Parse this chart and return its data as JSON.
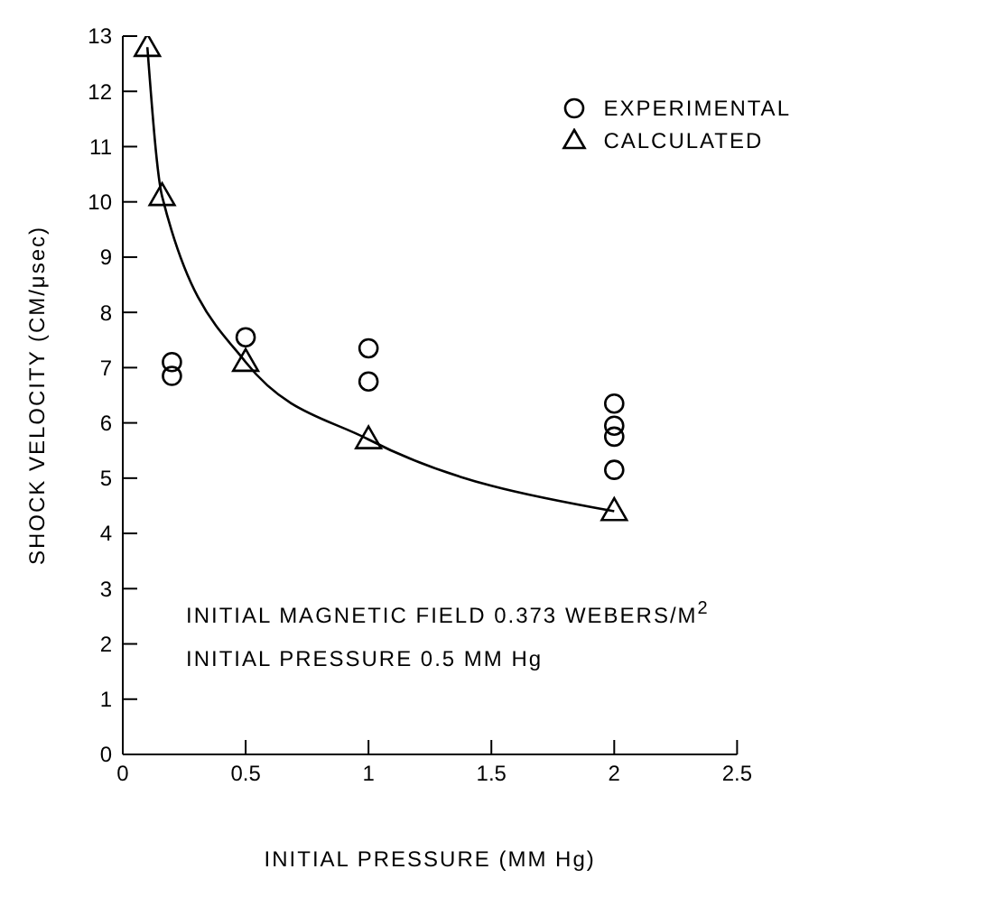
{
  "chart_data": {
    "type": "scatter",
    "xlabel": "INITIAL PRESSURE (MM Hg)",
    "ylabel": "SHOCK VELOCITY (CM/μsec)",
    "xlim": [
      0,
      2.5
    ],
    "xticks": [
      0,
      0.5,
      1,
      1.5,
      2,
      2.5
    ],
    "ylim": [
      0,
      13
    ],
    "yticks": [
      0,
      1,
      2,
      3,
      4,
      5,
      6,
      7,
      8,
      9,
      10,
      11,
      12,
      13
    ],
    "grid": false,
    "legend": "top right",
    "annotations": [
      "INITIAL MAGNETIC FIELD 0.373 WEBERS/M$^{2}$",
      "INITIAL PRESSURE 0.5 MM Hg"
    ],
    "series": [
      {
        "name": "EXPERIMENTAL",
        "marker": "circle",
        "color": "#000000",
        "x": [
          0.2,
          0.2,
          0.5,
          1,
          1,
          2,
          2,
          2,
          2
        ],
        "values": [
          7.1,
          6.85,
          7.55,
          7.35,
          6.75,
          6.35,
          5.95,
          5.75,
          5.15
        ]
      },
      {
        "name": "CALCULATED",
        "type": "line",
        "marker": "triangle",
        "color": "#000000",
        "x": [
          0.1,
          0.16,
          0.5,
          1,
          2
        ],
        "values": [
          12.8,
          10.1,
          7.1,
          5.7,
          4.4
        ]
      }
    ]
  }
}
